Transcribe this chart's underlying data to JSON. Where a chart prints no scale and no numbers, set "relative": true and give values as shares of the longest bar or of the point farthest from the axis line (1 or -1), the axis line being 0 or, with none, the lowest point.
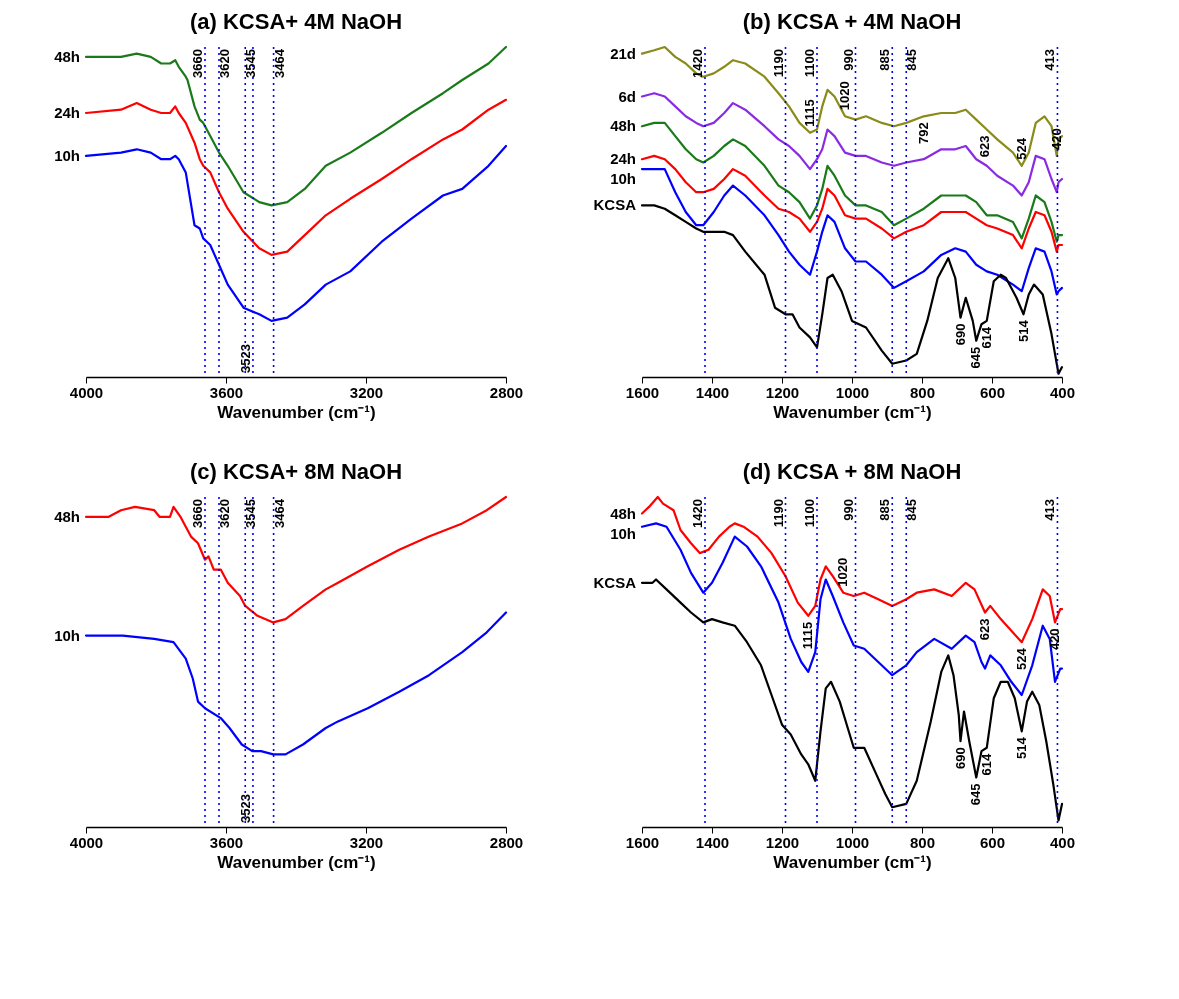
{
  "chart_data": [
    {
      "type": "line",
      "title": "(a) KCSA+ 4M NaOH",
      "xlabel": "Wavenumber (cm⁻¹)",
      "xlim": [
        4000,
        2800
      ],
      "xticks": [
        4000,
        3600,
        3200,
        2800
      ],
      "relative": true,
      "series": [
        {
          "name": "48h",
          "color": "#1a7a1a",
          "x": [
            4000,
            3900,
            3855,
            3815,
            3785,
            3760,
            3745,
            3735,
            3715,
            3710,
            3690,
            3675,
            3665,
            3645,
            3620,
            3595,
            3550,
            3505,
            3470,
            3425,
            3375,
            3315,
            3245,
            3155,
            3070,
            2980,
            2925,
            2850,
            2800
          ],
          "values": [
            0.97,
            0.97,
            0.98,
            0.97,
            0.95,
            0.95,
            0.96,
            0.94,
            0.91,
            0.9,
            0.82,
            0.78,
            0.77,
            0.73,
            0.68,
            0.64,
            0.56,
            0.53,
            0.52,
            0.53,
            0.57,
            0.64,
            0.68,
            0.74,
            0.8,
            0.86,
            0.9,
            0.95,
            1.0
          ]
        },
        {
          "name": "24h",
          "color": "#ff0000",
          "x": [
            4000,
            3900,
            3855,
            3815,
            3785,
            3760,
            3745,
            3735,
            3715,
            3690,
            3675,
            3665,
            3645,
            3620,
            3595,
            3550,
            3505,
            3470,
            3425,
            3375,
            3315,
            3245,
            3155,
            3070,
            2980,
            2925,
            2850,
            2800
          ],
          "values": [
            0.8,
            0.81,
            0.83,
            0.81,
            0.8,
            0.8,
            0.82,
            0.8,
            0.77,
            0.71,
            0.66,
            0.64,
            0.62,
            0.56,
            0.51,
            0.44,
            0.39,
            0.37,
            0.38,
            0.43,
            0.49,
            0.54,
            0.6,
            0.66,
            0.72,
            0.75,
            0.81,
            0.84
          ]
        },
        {
          "name": "10h",
          "color": "#0000ff",
          "x": [
            4000,
            3900,
            3855,
            3815,
            3785,
            3760,
            3745,
            3735,
            3715,
            3690,
            3675,
            3665,
            3645,
            3620,
            3595,
            3550,
            3505,
            3470,
            3425,
            3375,
            3315,
            3245,
            3155,
            3070,
            2980,
            2925,
            2850,
            2800
          ],
          "values": [
            0.67,
            0.68,
            0.69,
            0.68,
            0.66,
            0.66,
            0.67,
            0.66,
            0.62,
            0.46,
            0.45,
            0.42,
            0.4,
            0.34,
            0.28,
            0.21,
            0.19,
            0.17,
            0.18,
            0.22,
            0.28,
            0.32,
            0.41,
            0.48,
            0.55,
            0.57,
            0.64,
            0.7
          ]
        }
      ],
      "ref_lines": [
        {
          "axis": "x",
          "value": 3660,
          "label": "3660",
          "color": "#0000ff",
          "line_style": "dotted"
        },
        {
          "axis": "x",
          "value": 3620,
          "label": "3620",
          "color": "#0000ff",
          "line_style": "dotted"
        },
        {
          "axis": "x",
          "value": 3545,
          "label": "3545",
          "color": "#0000ff",
          "line_style": "dotted"
        },
        {
          "axis": "x",
          "value": 3523,
          "label": "3523",
          "color": "#0000ff",
          "line_style": "dotted"
        },
        {
          "axis": "x",
          "value": 3464,
          "label": "3464",
          "color": "#0000ff",
          "line_style": "dotted"
        }
      ]
    },
    {
      "type": "line",
      "title": "(b) KCSA + 4M NaOH",
      "xlabel": "Wavenumber (cm⁻¹)",
      "xlim": [
        1600,
        400
      ],
      "xticks": [
        1600,
        1400,
        1200,
        1000,
        800,
        600,
        400
      ],
      "relative": true,
      "series": [
        {
          "name": "21d",
          "color": "#8b8b1a",
          "x": [
            1600,
            1565,
            1535,
            1505,
            1475,
            1445,
            1425,
            1395,
            1365,
            1340,
            1305,
            1250,
            1210,
            1180,
            1150,
            1120,
            1100,
            1085,
            1070,
            1050,
            1020,
            990,
            960,
            915,
            880,
            845,
            795,
            745,
            705,
            675,
            645,
            615,
            585,
            540,
            515,
            495,
            475,
            450,
            430,
            415,
            410,
            400
          ],
          "values": [
            0.98,
            0.99,
            1.0,
            0.97,
            0.95,
            0.92,
            0.91,
            0.92,
            0.94,
            0.96,
            0.95,
            0.91,
            0.86,
            0.82,
            0.77,
            0.74,
            0.75,
            0.82,
            0.87,
            0.85,
            0.79,
            0.78,
            0.79,
            0.77,
            0.76,
            0.77,
            0.79,
            0.8,
            0.8,
            0.81,
            0.78,
            0.75,
            0.72,
            0.68,
            0.64,
            0.68,
            0.77,
            0.79,
            0.76,
            0.67,
            0.72,
            0.73
          ]
        },
        {
          "name": "6d",
          "color": "#8a2be2",
          "x": [
            1600,
            1565,
            1535,
            1505,
            1475,
            1445,
            1425,
            1395,
            1365,
            1340,
            1305,
            1250,
            1210,
            1180,
            1150,
            1120,
            1100,
            1085,
            1070,
            1050,
            1020,
            990,
            960,
            915,
            880,
            845,
            795,
            745,
            705,
            675,
            645,
            615,
            585,
            540,
            515,
            495,
            475,
            450,
            430,
            415,
            410,
            400
          ],
          "values": [
            0.85,
            0.86,
            0.85,
            0.82,
            0.79,
            0.77,
            0.76,
            0.77,
            0.8,
            0.83,
            0.81,
            0.76,
            0.72,
            0.7,
            0.67,
            0.63,
            0.66,
            0.69,
            0.75,
            0.73,
            0.68,
            0.67,
            0.67,
            0.65,
            0.64,
            0.65,
            0.66,
            0.69,
            0.69,
            0.7,
            0.66,
            0.64,
            0.61,
            0.58,
            0.55,
            0.59,
            0.67,
            0.66,
            0.6,
            0.56,
            0.59,
            0.6
          ]
        },
        {
          "name": "48h",
          "color": "#1a7a1a",
          "x": [
            1600,
            1565,
            1535,
            1505,
            1475,
            1445,
            1425,
            1395,
            1365,
            1340,
            1305,
            1250,
            1210,
            1180,
            1150,
            1120,
            1100,
            1085,
            1070,
            1050,
            1020,
            990,
            960,
            915,
            880,
            845,
            795,
            745,
            705,
            675,
            645,
            615,
            585,
            540,
            515,
            495,
            475,
            450,
            430,
            415,
            410,
            400
          ],
          "values": [
            0.76,
            0.77,
            0.77,
            0.73,
            0.69,
            0.66,
            0.65,
            0.67,
            0.7,
            0.72,
            0.7,
            0.64,
            0.58,
            0.56,
            0.53,
            0.48,
            0.52,
            0.57,
            0.64,
            0.61,
            0.55,
            0.52,
            0.52,
            0.5,
            0.46,
            0.48,
            0.51,
            0.55,
            0.55,
            0.55,
            0.53,
            0.49,
            0.49,
            0.47,
            0.42,
            0.48,
            0.55,
            0.53,
            0.47,
            0.41,
            0.43,
            0.43
          ]
        },
        {
          "name": "24h",
          "color": "#ff0000",
          "x": [
            1600,
            1565,
            1535,
            1505,
            1475,
            1445,
            1425,
            1395,
            1365,
            1340,
            1305,
            1250,
            1210,
            1180,
            1150,
            1120,
            1100,
            1085,
            1070,
            1050,
            1020,
            990,
            960,
            915,
            880,
            845,
            795,
            745,
            705,
            675,
            645,
            615,
            585,
            540,
            515,
            495,
            475,
            450,
            430,
            415,
            410,
            400
          ],
          "values": [
            0.66,
            0.67,
            0.66,
            0.63,
            0.59,
            0.56,
            0.56,
            0.57,
            0.6,
            0.63,
            0.61,
            0.55,
            0.51,
            0.5,
            0.48,
            0.44,
            0.47,
            0.51,
            0.57,
            0.55,
            0.49,
            0.48,
            0.48,
            0.45,
            0.42,
            0.44,
            0.46,
            0.5,
            0.5,
            0.5,
            0.48,
            0.46,
            0.45,
            0.43,
            0.39,
            0.45,
            0.5,
            0.49,
            0.44,
            0.38,
            0.4,
            0.4
          ]
        },
        {
          "name": "10h",
          "color": "#0000ff",
          "x": [
            1600,
            1565,
            1535,
            1505,
            1475,
            1445,
            1425,
            1395,
            1365,
            1340,
            1305,
            1250,
            1210,
            1180,
            1150,
            1120,
            1100,
            1085,
            1070,
            1050,
            1020,
            990,
            960,
            915,
            880,
            845,
            795,
            745,
            705,
            675,
            645,
            615,
            585,
            540,
            515,
            495,
            475,
            450,
            430,
            415,
            410,
            400
          ],
          "values": [
            0.63,
            0.63,
            0.63,
            0.56,
            0.5,
            0.46,
            0.46,
            0.5,
            0.55,
            0.58,
            0.55,
            0.49,
            0.43,
            0.38,
            0.34,
            0.31,
            0.38,
            0.44,
            0.49,
            0.47,
            0.39,
            0.35,
            0.35,
            0.31,
            0.27,
            0.29,
            0.32,
            0.37,
            0.39,
            0.38,
            0.34,
            0.32,
            0.31,
            0.28,
            0.26,
            0.33,
            0.39,
            0.38,
            0.32,
            0.25,
            0.26,
            0.27
          ]
        },
        {
          "name": "KCSA",
          "color": "#000000",
          "x": [
            1600,
            1565,
            1535,
            1505,
            1475,
            1445,
            1425,
            1395,
            1365,
            1340,
            1305,
            1250,
            1220,
            1190,
            1170,
            1150,
            1120,
            1100,
            1085,
            1070,
            1055,
            1030,
            1000,
            980,
            960,
            915,
            885,
            845,
            815,
            785,
            755,
            725,
            705,
            690,
            675,
            655,
            645,
            630,
            615,
            595,
            575,
            560,
            530,
            510,
            495,
            480,
            455,
            430,
            410,
            400
          ],
          "values": [
            0.52,
            0.52,
            0.51,
            0.49,
            0.47,
            0.45,
            0.44,
            0.44,
            0.44,
            0.43,
            0.38,
            0.31,
            0.21,
            0.19,
            0.19,
            0.15,
            0.12,
            0.09,
            0.19,
            0.3,
            0.31,
            0.26,
            0.17,
            0.16,
            0.15,
            0.08,
            0.04,
            0.05,
            0.07,
            0.17,
            0.3,
            0.36,
            0.3,
            0.18,
            0.24,
            0.17,
            0.11,
            0.16,
            0.17,
            0.29,
            0.31,
            0.3,
            0.24,
            0.19,
            0.25,
            0.28,
            0.25,
            0.13,
            0.01,
            0.03
          ]
        }
      ],
      "ref_lines": [
        {
          "axis": "x",
          "value": 1420,
          "label": "1420",
          "color": "#0000ff",
          "line_style": "dotted"
        },
        {
          "axis": "x",
          "value": 1190,
          "label": "1190",
          "color": "#0000ff",
          "line_style": "dotted"
        },
        {
          "axis": "x",
          "value": 1100,
          "label": "1100",
          "color": "#0000ff",
          "line_style": "dotted"
        },
        {
          "axis": "x",
          "value": 990,
          "label": "990",
          "color": "#0000ff",
          "line_style": "dotted"
        },
        {
          "axis": "x",
          "value": 885,
          "label": "885",
          "color": "#0000ff",
          "line_style": "dotted"
        },
        {
          "axis": "x",
          "value": 845,
          "label": "845",
          "color": "#0000ff",
          "line_style": "dotted"
        },
        {
          "axis": "x",
          "value": 413,
          "label": "413",
          "color": "#0000ff",
          "line_style": "dotted"
        }
      ],
      "annotations": [
        {
          "text": "1115",
          "x": 1120,
          "y": 0.74
        },
        {
          "text": "1020",
          "x": 1020,
          "y": 0.79
        },
        {
          "text": "792",
          "x": 795,
          "y": 0.79
        },
        {
          "text": "623",
          "x": 620,
          "y": 0.75
        },
        {
          "text": "524",
          "x": 515,
          "y": 0.64
        },
        {
          "text": "420",
          "x": 415,
          "y": 0.67
        },
        {
          "text": "690",
          "x": 690,
          "y": 0.18
        },
        {
          "text": "645",
          "x": 645,
          "y": 0.11
        },
        {
          "text": "614",
          "x": 615,
          "y": 0.17
        },
        {
          "text": "514",
          "x": 510,
          "y": 0.19
        }
      ]
    },
    {
      "type": "line",
      "title": "(c) KCSA+ 8M NaOH",
      "xlabel": "Wavenumber (cm⁻¹)",
      "xlim": [
        4000,
        2800
      ],
      "xticks": [
        4000,
        3600,
        3200,
        2800
      ],
      "relative": true,
      "series": [
        {
          "name": "48h",
          "color": "#ff0000",
          "x": [
            4000,
            3935,
            3900,
            3860,
            3805,
            3790,
            3760,
            3750,
            3730,
            3720,
            3700,
            3680,
            3660,
            3650,
            3635,
            3615,
            3595,
            3560,
            3545,
            3510,
            3465,
            3430,
            3380,
            3315,
            3280,
            3195,
            3105,
            3020,
            2925,
            2855,
            2800
          ],
          "values": [
            0.94,
            0.94,
            0.96,
            0.97,
            0.96,
            0.94,
            0.94,
            0.97,
            0.94,
            0.92,
            0.88,
            0.86,
            0.81,
            0.82,
            0.78,
            0.78,
            0.74,
            0.7,
            0.67,
            0.64,
            0.62,
            0.63,
            0.67,
            0.72,
            0.74,
            0.79,
            0.84,
            0.88,
            0.92,
            0.96,
            1.0
          ]
        },
        {
          "name": "10h",
          "color": "#0000ff",
          "x": [
            4000,
            3895,
            3805,
            3750,
            3715,
            3695,
            3680,
            3660,
            3615,
            3590,
            3555,
            3525,
            3500,
            3465,
            3430,
            3380,
            3315,
            3280,
            3195,
            3105,
            3020,
            2925,
            2855,
            2800
          ],
          "values": [
            0.58,
            0.58,
            0.57,
            0.56,
            0.51,
            0.45,
            0.38,
            0.36,
            0.33,
            0.3,
            0.25,
            0.23,
            0.23,
            0.22,
            0.22,
            0.25,
            0.3,
            0.32,
            0.36,
            0.41,
            0.46,
            0.53,
            0.59,
            0.65
          ]
        }
      ],
      "ref_lines": [
        {
          "axis": "x",
          "value": 3660,
          "label": "3660",
          "color": "#0000ff",
          "line_style": "dotted"
        },
        {
          "axis": "x",
          "value": 3620,
          "label": "3620",
          "color": "#0000ff",
          "line_style": "dotted"
        },
        {
          "axis": "x",
          "value": 3545,
          "label": "3545",
          "color": "#0000ff",
          "line_style": "dotted"
        },
        {
          "axis": "x",
          "value": 3523,
          "label": "3523",
          "color": "#0000ff",
          "line_style": "dotted"
        },
        {
          "axis": "x",
          "value": 3464,
          "label": "3464",
          "color": "#0000ff",
          "line_style": "dotted"
        }
      ]
    },
    {
      "type": "line",
      "title": "(d) KCSA + 8M NaOH",
      "xlabel": "Wavenumber (cm⁻¹)",
      "xlim": [
        1600,
        400
      ],
      "xticks": [
        1600,
        1400,
        1200,
        1000,
        800,
        600,
        400
      ],
      "relative": true,
      "series": [
        {
          "name": "48h",
          "color": "#ff0000",
          "x": [
            1600,
            1580,
            1555,
            1540,
            1510,
            1490,
            1460,
            1435,
            1410,
            1380,
            1350,
            1335,
            1310,
            1270,
            1230,
            1190,
            1155,
            1125,
            1105,
            1090,
            1075,
            1055,
            1025,
            995,
            965,
            925,
            885,
            845,
            815,
            765,
            715,
            675,
            650,
            620,
            605,
            575,
            515,
            485,
            455,
            435,
            420,
            405,
            400
          ],
          "values": [
            0.95,
            0.97,
            1.0,
            0.98,
            0.96,
            0.9,
            0.86,
            0.83,
            0.84,
            0.88,
            0.91,
            0.92,
            0.91,
            0.88,
            0.83,
            0.76,
            0.68,
            0.64,
            0.67,
            0.75,
            0.79,
            0.76,
            0.71,
            0.7,
            0.71,
            0.69,
            0.67,
            0.69,
            0.71,
            0.72,
            0.7,
            0.74,
            0.72,
            0.65,
            0.67,
            0.63,
            0.56,
            0.63,
            0.72,
            0.7,
            0.62,
            0.66,
            0.66
          ]
        },
        {
          "name": "10h",
          "color": "#0000ff",
          "x": [
            1600,
            1560,
            1530,
            1490,
            1460,
            1425,
            1400,
            1370,
            1335,
            1300,
            1260,
            1210,
            1175,
            1145,
            1125,
            1105,
            1090,
            1075,
            1055,
            1025,
            995,
            965,
            925,
            885,
            845,
            815,
            765,
            715,
            675,
            650,
            630,
            620,
            605,
            575,
            545,
            515,
            485,
            455,
            435,
            420,
            405,
            400
          ],
          "values": [
            0.91,
            0.92,
            0.91,
            0.84,
            0.77,
            0.71,
            0.74,
            0.8,
            0.88,
            0.85,
            0.79,
            0.68,
            0.57,
            0.5,
            0.47,
            0.53,
            0.69,
            0.75,
            0.7,
            0.62,
            0.55,
            0.54,
            0.5,
            0.46,
            0.49,
            0.53,
            0.57,
            0.54,
            0.58,
            0.56,
            0.5,
            0.48,
            0.52,
            0.49,
            0.44,
            0.4,
            0.49,
            0.61,
            0.57,
            0.44,
            0.48,
            0.48
          ]
        },
        {
          "name": "KCSA",
          "color": "#000000",
          "x": [
            1600,
            1570,
            1560,
            1530,
            1490,
            1460,
            1425,
            1400,
            1370,
            1335,
            1300,
            1260,
            1230,
            1200,
            1175,
            1145,
            1125,
            1105,
            1090,
            1075,
            1060,
            1035,
            1015,
            995,
            965,
            935,
            905,
            885,
            845,
            815,
            775,
            745,
            725,
            710,
            695,
            690,
            680,
            665,
            645,
            630,
            615,
            595,
            575,
            555,
            535,
            515,
            500,
            485,
            465,
            445,
            425,
            410,
            400
          ],
          "values": [
            0.74,
            0.74,
            0.75,
            0.72,
            0.68,
            0.65,
            0.62,
            0.63,
            0.62,
            0.61,
            0.56,
            0.49,
            0.4,
            0.31,
            0.28,
            0.22,
            0.19,
            0.14,
            0.29,
            0.42,
            0.44,
            0.38,
            0.31,
            0.24,
            0.24,
            0.17,
            0.1,
            0.06,
            0.07,
            0.14,
            0.32,
            0.47,
            0.52,
            0.46,
            0.34,
            0.26,
            0.35,
            0.26,
            0.15,
            0.23,
            0.24,
            0.39,
            0.44,
            0.44,
            0.39,
            0.29,
            0.38,
            0.41,
            0.37,
            0.26,
            0.13,
            0.02,
            0.07
          ]
        }
      ],
      "ref_lines": [
        {
          "axis": "x",
          "value": 1420,
          "label": "1420",
          "color": "#0000ff",
          "line_style": "dotted"
        },
        {
          "axis": "x",
          "value": 1190,
          "label": "1190",
          "color": "#0000ff",
          "line_style": "dotted"
        },
        {
          "axis": "x",
          "value": 1100,
          "label": "1100",
          "color": "#0000ff",
          "line_style": "dotted"
        },
        {
          "axis": "x",
          "value": 990,
          "label": "990",
          "color": "#0000ff",
          "line_style": "dotted"
        },
        {
          "axis": "x",
          "value": 885,
          "label": "885",
          "color": "#0000ff",
          "line_style": "dotted"
        },
        {
          "axis": "x",
          "value": 845,
          "label": "845",
          "color": "#0000ff",
          "line_style": "dotted"
        },
        {
          "axis": "x",
          "value": 413,
          "label": "413",
          "color": "#0000ff",
          "line_style": "dotted"
        }
      ],
      "annotations": [
        {
          "text": "1115",
          "x": 1125,
          "y": 0.64
        },
        {
          "text": "1020",
          "x": 1025,
          "y": 0.71
        },
        {
          "text": "623",
          "x": 620,
          "y": 0.65
        },
        {
          "text": "524",
          "x": 515,
          "y": 0.56
        },
        {
          "text": "420",
          "x": 420,
          "y": 0.62
        },
        {
          "text": "690",
          "x": 690,
          "y": 0.26
        },
        {
          "text": "645",
          "x": 645,
          "y": 0.15
        },
        {
          "text": "614",
          "x": 615,
          "y": 0.24
        },
        {
          "text": "514",
          "x": 515,
          "y": 0.29
        }
      ]
    }
  ]
}
